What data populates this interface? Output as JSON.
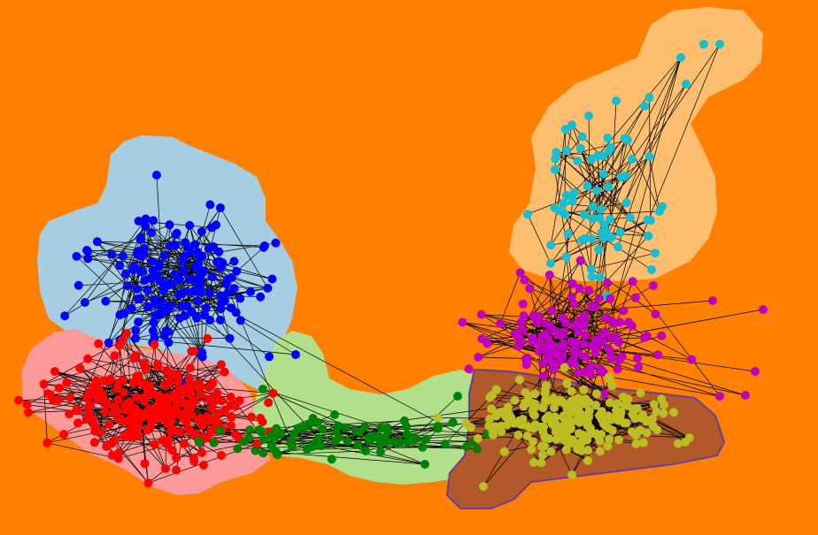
{
  "diagram": {
    "type": "clustered-network-map",
    "background_color": "#ff7f00",
    "edge_color": "#000000",
    "clusters": [
      {
        "id": "blue",
        "region_color": "#a6cee3",
        "node_color": "#0000ff",
        "node_count": 170,
        "seed": 11
      },
      {
        "id": "red",
        "region_color": "#fb9a99",
        "node_color": "#ff0000",
        "node_count": 260,
        "seed": 23
      },
      {
        "id": "green",
        "region_color": "#b2df8a",
        "node_color": "#008000",
        "node_count": 75,
        "seed": 37
      },
      {
        "id": "cyan",
        "region_color": "#fdbf6f",
        "node_color": "#17becf",
        "node_count": 70,
        "seed": 41
      },
      {
        "id": "magenta",
        "region_color": "#ff7f00",
        "node_color": "#bf00bf",
        "node_count": 150,
        "seed": 53
      },
      {
        "id": "olive",
        "region_color": "#b15928",
        "node_color": "#bcbd22",
        "node_count": 220,
        "seed": 67
      }
    ]
  }
}
